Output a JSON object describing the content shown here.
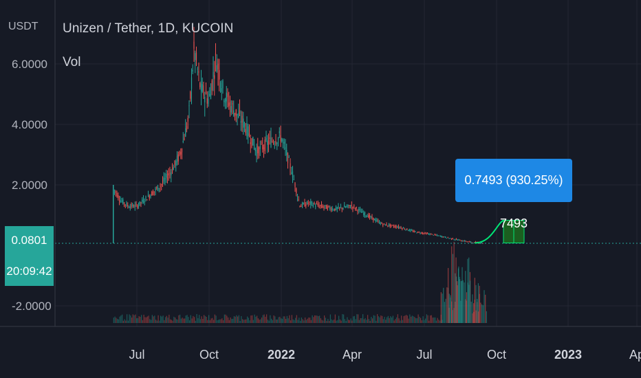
{
  "header": {
    "title": "Unizen / Tether, 1D, KUCOIN",
    "volume_label": "Vol",
    "unit": "USDT"
  },
  "last_price": {
    "value": "0.0801",
    "countdown": "20:09:42",
    "color": "#26a69a"
  },
  "projection": {
    "label": "0.7493 (930.25%) 7493",
    "color": "#1e88e5",
    "box_color": "#1b5e20",
    "line_color": "#00e676"
  },
  "colors": {
    "background": "#161a25",
    "up": "#26a69a",
    "down": "#ef5350",
    "grid": "#242733"
  },
  "chart_data": {
    "type": "candlestick",
    "title": "Unizen / Tether, 1D, KUCOIN",
    "ylabel": "USDT",
    "y_ticks": [
      "6.0000",
      "4.0000",
      "2.0000",
      "-2.0000"
    ],
    "y_tick_values": [
      6,
      4,
      2,
      -2
    ],
    "x_ticks": [
      "Jul",
      "Oct",
      "2022",
      "Apr",
      "Jul",
      "Oct",
      "2023",
      "Ap"
    ],
    "x_tick_bold": [
      false,
      false,
      true,
      false,
      false,
      false,
      true,
      false
    ],
    "ylim": [
      -2.6,
      6.8
    ],
    "x_range": [
      "2021-05-20",
      "2023-04-05"
    ],
    "series": [
      {
        "name": "Price",
        "values": [
          {
            "date": "2021-06-01",
            "close": 1.9
          },
          {
            "date": "2021-06-10",
            "close": 1.5
          },
          {
            "date": "2021-06-20",
            "close": 1.3
          },
          {
            "date": "2021-07-01",
            "close": 1.3
          },
          {
            "date": "2021-07-15",
            "close": 1.6
          },
          {
            "date": "2021-08-01",
            "close": 2.0
          },
          {
            "date": "2021-08-15",
            "close": 2.5
          },
          {
            "date": "2021-08-25",
            "close": 3.0
          },
          {
            "date": "2021-09-05",
            "close": 4.2
          },
          {
            "date": "2021-09-12",
            "close": 6.5
          },
          {
            "date": "2021-09-20",
            "close": 5.2
          },
          {
            "date": "2021-10-01",
            "close": 4.8
          },
          {
            "date": "2021-10-10",
            "close": 6.2
          },
          {
            "date": "2021-10-20",
            "close": 5.0
          },
          {
            "date": "2021-11-01",
            "close": 4.5
          },
          {
            "date": "2021-11-15",
            "close": 4.0
          },
          {
            "date": "2021-12-01",
            "close": 3.1
          },
          {
            "date": "2021-12-15",
            "close": 3.4
          },
          {
            "date": "2022-01-01",
            "close": 3.6
          },
          {
            "date": "2022-01-15",
            "close": 2.4
          },
          {
            "date": "2022-01-25",
            "close": 1.3
          },
          {
            "date": "2022-02-05",
            "close": 1.4
          },
          {
            "date": "2022-02-20",
            "close": 1.3
          },
          {
            "date": "2022-03-10",
            "close": 1.2
          },
          {
            "date": "2022-04-01",
            "close": 1.3
          },
          {
            "date": "2022-04-20",
            "close": 1.0
          },
          {
            "date": "2022-05-10",
            "close": 0.7
          },
          {
            "date": "2022-06-01",
            "close": 0.6
          },
          {
            "date": "2022-06-20",
            "close": 0.45
          },
          {
            "date": "2022-07-15",
            "close": 0.35
          },
          {
            "date": "2022-08-10",
            "close": 0.2
          },
          {
            "date": "2022-09-01",
            "close": 0.1
          },
          {
            "date": "2022-09-15",
            "close": 0.08
          }
        ]
      }
    ],
    "volume": [
      {
        "date": "2022-08-01",
        "value": 0.5
      },
      {
        "date": "2022-08-10",
        "value": 1.0
      },
      {
        "date": "2022-08-20",
        "value": 0.8
      },
      {
        "date": "2022-09-01",
        "value": 0.7
      },
      {
        "date": "2022-09-10",
        "value": 0.4
      }
    ],
    "last_value": 0.0801,
    "projection_target": 0.7493,
    "projection_percent": "930.25%",
    "grid": true
  }
}
